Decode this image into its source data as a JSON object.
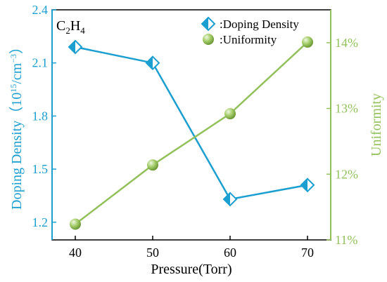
{
  "chart_data": {
    "type": "line",
    "panel_label": "C2H4",
    "panel_label_main": "C",
    "panel_label_sub1": "2",
    "panel_label_mid": "H",
    "panel_label_sub2": "4",
    "xlabel": "Pressure(Torr)",
    "x": [
      40,
      50,
      60,
      70
    ],
    "xlim": [
      37,
      73
    ],
    "x_ticks": [
      40,
      50,
      60,
      70
    ],
    "grid": false,
    "legend_position": "top-right",
    "y_left": {
      "label_main": "Doping Density",
      "label_unit_open": "（10",
      "label_unit_exp": "15",
      "label_unit_mid": "/cm",
      "label_unit_exp2": "−3",
      "label_unit_close": "）",
      "ylim": [
        1.1,
        2.4
      ],
      "ticks": [
        1.2,
        1.5,
        1.8,
        2.1,
        2.4
      ],
      "color": "#1a9fd0"
    },
    "y_right": {
      "label": "Uniformity",
      "ylim": [
        11,
        14.5
      ],
      "ticks": [
        11,
        12,
        13,
        14
      ],
      "tick_suffix": "%",
      "color": "#92c15a"
    },
    "series": [
      {
        "name": ":Doping Density",
        "axis": "left",
        "marker": "diamond",
        "color": "#1a9fd0",
        "values": [
          2.19,
          2.1,
          1.33,
          1.41
        ]
      },
      {
        "name": ":Uniformity",
        "axis": "right",
        "marker": "sphere",
        "color": "#92c15a",
        "values": [
          11.24,
          12.14,
          12.92,
          14.01
        ]
      }
    ]
  }
}
